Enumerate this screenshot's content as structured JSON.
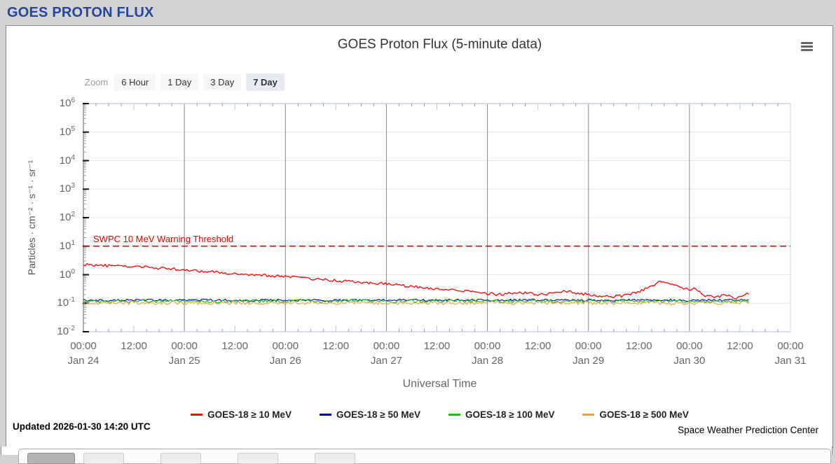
{
  "page": {
    "header_title": "GOES PROTON FLUX"
  },
  "chart": {
    "zoom": {
      "label": "Zoom",
      "options": [
        "6 Hour",
        "1 Day",
        "3 Day",
        "7 Day"
      ],
      "selected": "7 Day"
    },
    "updated": "Updated 2026-01-30 14:20 UTC",
    "credit": "Space Weather Prediction Center",
    "menu_icon": "hamburger-icon"
  },
  "chart_data": {
    "type": "line",
    "title": "GOES Proton Flux (5-minute data)",
    "xlabel": "Universal Time",
    "ylabel": "Particles · cm⁻² · s⁻¹ · sr⁻¹",
    "y_axis": {
      "scale": "log",
      "ticks_exponents": [
        6,
        5,
        4,
        3,
        2,
        1,
        0,
        -1,
        -2
      ],
      "range_exponents": [
        -2,
        6
      ],
      "grid": true
    },
    "x_axis": {
      "days": [
        "Jan 24",
        "Jan 25",
        "Jan 26",
        "Jan 27",
        "Jan 28",
        "Jan 29",
        "Jan 30",
        "Jan 31"
      ],
      "time_ticks": [
        "00:00",
        "12:00"
      ],
      "minor_tick_hours": 3,
      "data_end_day": 6.6,
      "day_gridlines": true
    },
    "threshold": {
      "label": "SWPC 10 MeV Warning Threshold",
      "value": 10,
      "color": "#dd0000",
      "style": "dashed"
    },
    "legend_position": "bottom",
    "series": [
      {
        "name": "GOES-18 ≥ 10 MeV",
        "color": "#ff0000",
        "noise": 0.22,
        "anchors_days_value": [
          [
            0,
            2.3
          ],
          [
            0.3,
            2.0
          ],
          [
            0.6,
            1.85
          ],
          [
            1.0,
            1.5
          ],
          [
            1.4,
            1.15
          ],
          [
            1.8,
            0.95
          ],
          [
            2.1,
            0.8
          ],
          [
            2.4,
            0.65
          ],
          [
            2.7,
            0.55
          ],
          [
            3.0,
            0.48
          ],
          [
            3.3,
            0.37
          ],
          [
            3.6,
            0.3
          ],
          [
            3.9,
            0.24
          ],
          [
            4.1,
            0.2
          ],
          [
            4.3,
            0.24
          ],
          [
            4.55,
            0.2
          ],
          [
            4.75,
            0.27
          ],
          [
            4.95,
            0.21
          ],
          [
            5.15,
            0.17
          ],
          [
            5.35,
            0.18
          ],
          [
            5.5,
            0.26
          ],
          [
            5.62,
            0.4
          ],
          [
            5.72,
            0.6
          ],
          [
            5.8,
            0.48
          ],
          [
            5.9,
            0.38
          ],
          [
            5.98,
            0.3
          ],
          [
            6.05,
            0.33
          ],
          [
            6.15,
            0.19
          ],
          [
            6.25,
            0.16
          ],
          [
            6.35,
            0.2
          ],
          [
            6.45,
            0.15
          ],
          [
            6.52,
            0.19
          ],
          [
            6.6,
            0.24
          ]
        ]
      },
      {
        "name": "GOES-18 ≥ 50 MeV",
        "color": "#0000bb",
        "noise": 0.18,
        "anchors_days_value": [
          [
            0,
            0.128
          ],
          [
            6.6,
            0.128
          ]
        ]
      },
      {
        "name": "GOES-18 ≥ 100 MeV",
        "color": "#00cc00",
        "noise": 0.28,
        "anchors_days_value": [
          [
            0,
            0.118
          ],
          [
            6.6,
            0.118
          ]
        ]
      },
      {
        "name": "GOES-18 ≥ 500 MeV",
        "color": "#e8a33d",
        "noise": 0.3,
        "anchors_days_value": [
          [
            0,
            0.103
          ],
          [
            6.6,
            0.103
          ]
        ]
      }
    ]
  }
}
